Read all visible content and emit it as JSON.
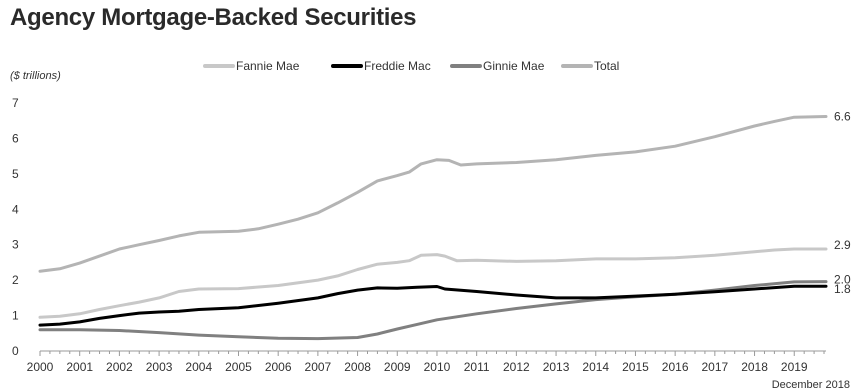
{
  "chart_data": {
    "type": "line",
    "title": "Agency Mortgage-Backed Securities",
    "unit_label": "($ trillions)",
    "note": "December 2018",
    "xlim": [
      2000,
      2019.8
    ],
    "ylim": [
      0,
      7
    ],
    "y_ticks": [
      0,
      1,
      2,
      3,
      4,
      5,
      6,
      7
    ],
    "x_ticks": [
      2000,
      2001,
      2002,
      2003,
      2004,
      2005,
      2006,
      2007,
      2008,
      2009,
      2010,
      2011,
      2012,
      2013,
      2014,
      2015,
      2016,
      2017,
      2018,
      2019
    ],
    "x_tick_labels": [
      "2000",
      "2001",
      "2002",
      "2003",
      "2004",
      "2005",
      "2006",
      "2007",
      "2008",
      "2009",
      "2010",
      "2011",
      "2012",
      "2013",
      "2014",
      "2015",
      "2016",
      "2017",
      "2018",
      "2019"
    ],
    "grid": false,
    "legend_position": "top",
    "series": [
      {
        "name": "Fannie Mae",
        "color": "#c8c8c8",
        "end_label": "2.9",
        "x": [
          2000,
          2000.5,
          2001,
          2001.5,
          2002,
          2002.5,
          2003,
          2003.5,
          2004,
          2005,
          2006,
          2007,
          2007.5,
          2008,
          2008.5,
          2009,
          2009.3,
          2009.6,
          2010,
          2010.2,
          2010.5,
          2011,
          2012,
          2013,
          2014,
          2015,
          2016,
          2017,
          2018,
          2018.5,
          2019,
          2019.8
        ],
        "values": [
          0.95,
          0.98,
          1.05,
          1.17,
          1.28,
          1.38,
          1.5,
          1.68,
          1.75,
          1.76,
          1.85,
          2.0,
          2.12,
          2.3,
          2.45,
          2.5,
          2.55,
          2.7,
          2.72,
          2.68,
          2.55,
          2.56,
          2.53,
          2.55,
          2.6,
          2.6,
          2.63,
          2.7,
          2.8,
          2.85,
          2.88,
          2.88
        ]
      },
      {
        "name": "Freddie Mac",
        "color": "#000000",
        "end_label": "1.8",
        "x": [
          2000,
          2000.5,
          2001,
          2001.5,
          2002,
          2002.5,
          2003,
          2003.5,
          2004,
          2005,
          2006,
          2007,
          2007.5,
          2008,
          2008.5,
          2009,
          2009.5,
          2010,
          2010.2,
          2011,
          2012,
          2013,
          2014,
          2015,
          2016,
          2017,
          2018,
          2019,
          2019.8
        ],
        "values": [
          0.73,
          0.76,
          0.82,
          0.92,
          1.0,
          1.07,
          1.1,
          1.12,
          1.17,
          1.22,
          1.35,
          1.5,
          1.62,
          1.72,
          1.78,
          1.77,
          1.8,
          1.82,
          1.75,
          1.68,
          1.58,
          1.5,
          1.5,
          1.55,
          1.6,
          1.67,
          1.75,
          1.83,
          1.83
        ]
      },
      {
        "name": "Ginnie Mae",
        "color": "#808080",
        "end_label": "2.0",
        "x": [
          2000,
          2001,
          2002,
          2003,
          2004,
          2005,
          2006,
          2007,
          2008,
          2008.5,
          2009,
          2009.5,
          2010,
          2011,
          2012,
          2013,
          2014,
          2015,
          2016,
          2017,
          2018,
          2019,
          2019.8
        ],
        "values": [
          0.6,
          0.6,
          0.58,
          0.52,
          0.45,
          0.4,
          0.36,
          0.35,
          0.38,
          0.48,
          0.62,
          0.75,
          0.88,
          1.05,
          1.2,
          1.33,
          1.45,
          1.53,
          1.6,
          1.72,
          1.85,
          1.95,
          1.96
        ]
      },
      {
        "name": "Total",
        "color": "#b4b4b4",
        "end_label": "6.6",
        "x": [
          2000,
          2000.5,
          2001,
          2001.5,
          2002,
          2002.5,
          2003,
          2003.5,
          2004,
          2005,
          2005.5,
          2006,
          2006.5,
          2007,
          2007.5,
          2008,
          2008.5,
          2009,
          2009.3,
          2009.6,
          2010,
          2010.3,
          2010.6,
          2011,
          2012,
          2013,
          2014,
          2015,
          2016,
          2017,
          2018,
          2018.5,
          2019,
          2019.8
        ],
        "values": [
          2.25,
          2.32,
          2.48,
          2.68,
          2.88,
          3.0,
          3.12,
          3.25,
          3.35,
          3.38,
          3.45,
          3.58,
          3.72,
          3.9,
          4.18,
          4.48,
          4.8,
          4.95,
          5.05,
          5.28,
          5.4,
          5.38,
          5.25,
          5.28,
          5.32,
          5.4,
          5.52,
          5.62,
          5.78,
          6.05,
          6.35,
          6.48,
          6.6,
          6.62
        ]
      }
    ]
  }
}
